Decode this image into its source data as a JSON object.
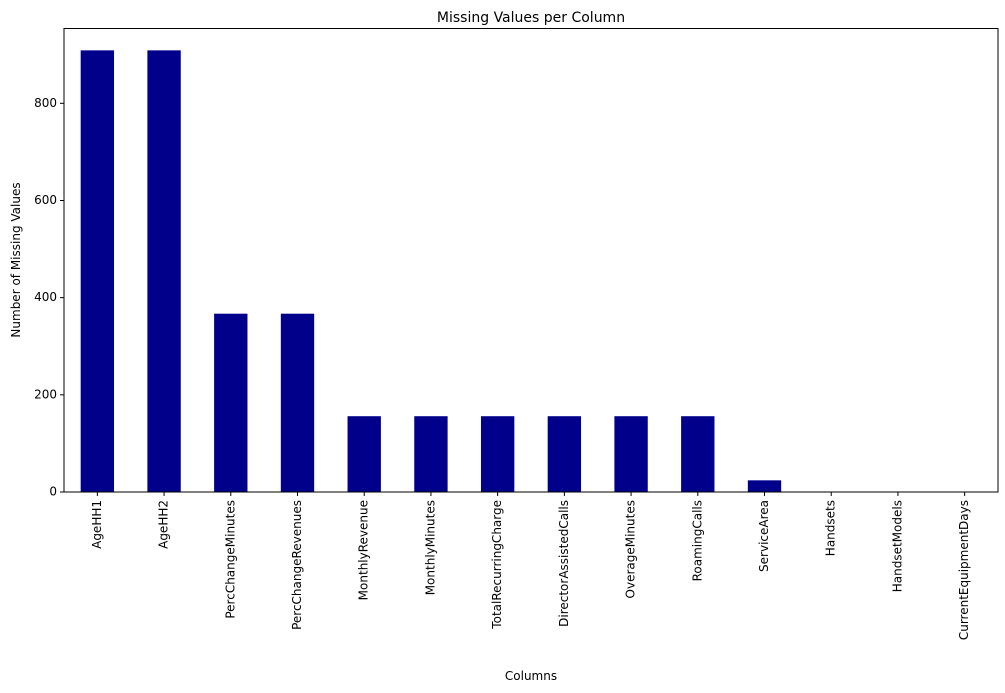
{
  "chart_data": {
    "type": "bar",
    "title": "Missing Values per Column",
    "xlabel": "Columns",
    "ylabel": "Number of Missing Values",
    "categories": [
      "AgeHH1",
      "AgeHH2",
      "PercChangeMinutes",
      "PercChangeRevenues",
      "MonthlyRevenue",
      "MonthlyMinutes",
      "TotalRecurringCharge",
      "DirectorAssistedCalls",
      "OverageMinutes",
      "RoamingCalls",
      "ServiceArea",
      "Handsets",
      "HandsetModels",
      "CurrentEquipmentDays"
    ],
    "values": [
      909,
      909,
      367,
      367,
      156,
      156,
      156,
      156,
      156,
      156,
      24,
      1,
      1,
      1
    ],
    "ylim": [
      0,
      954
    ],
    "yticks": [
      0,
      200,
      400,
      600,
      800
    ],
    "bar_color": "#00008b",
    "grid": false,
    "legend": false
  }
}
